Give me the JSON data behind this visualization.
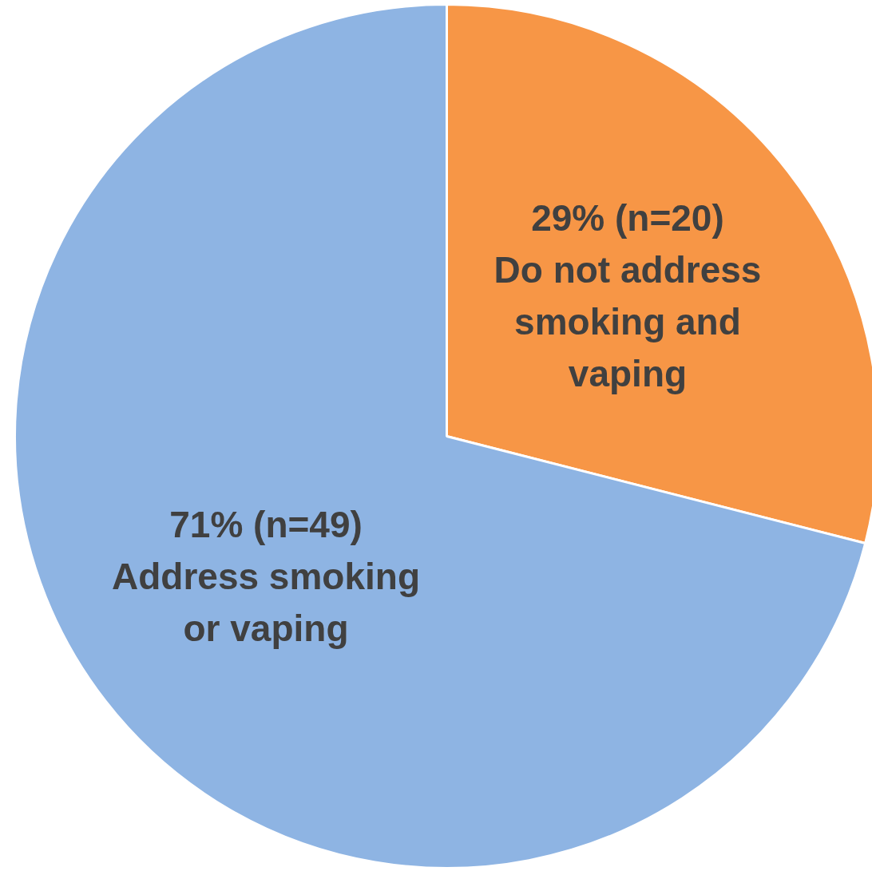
{
  "chart_data": {
    "type": "pie",
    "categories": [
      "Do not address smoking and vaping",
      "Address smoking or vaping"
    ],
    "values": [
      20,
      49
    ],
    "value_labels": [
      "29% (n=20)",
      "71% (n=49)"
    ],
    "colors": [
      "#f79646",
      "#8eb4e3"
    ]
  }
}
